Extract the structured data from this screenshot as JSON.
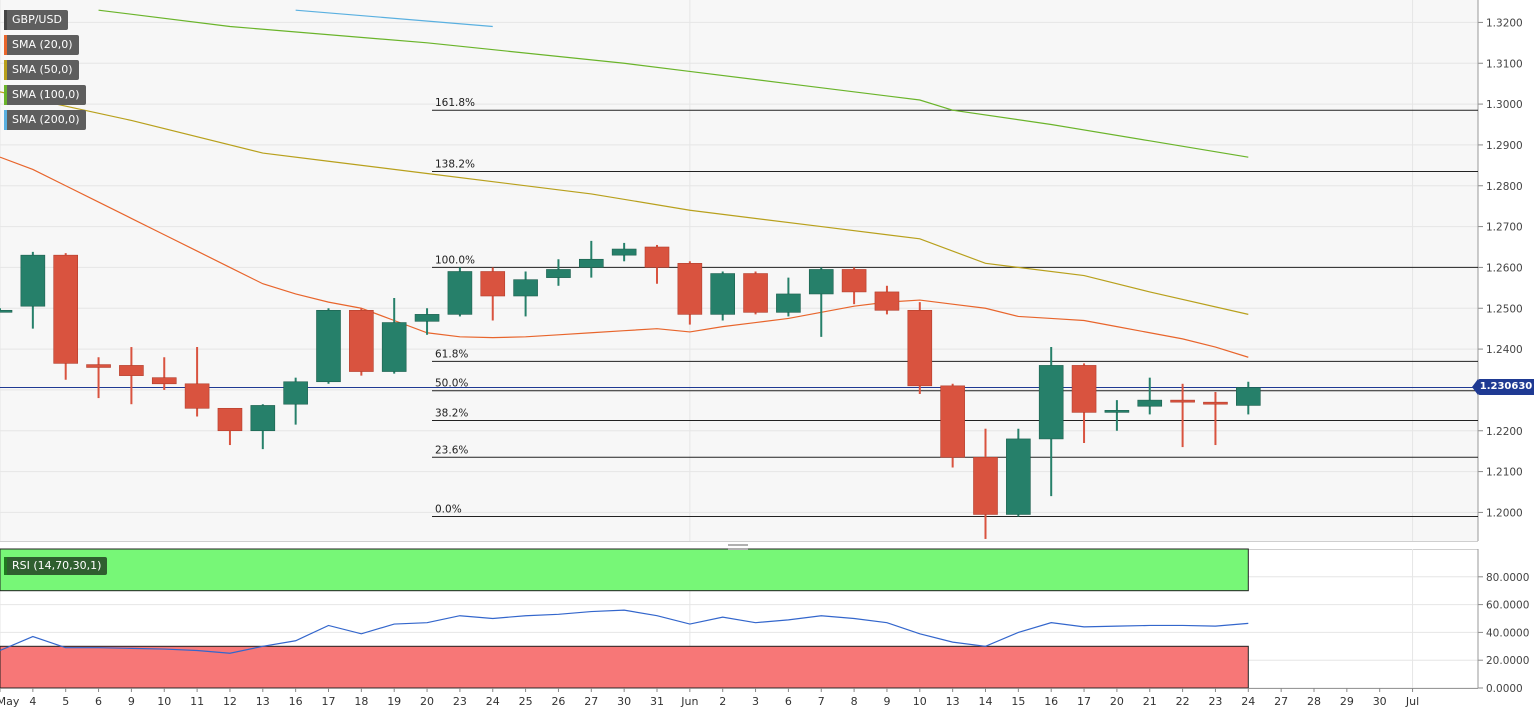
{
  "chart_data": [
    {
      "type": "candlestick",
      "symbol": "GBP/USD",
      "x_labels": [
        "May",
        "4",
        "5",
        "6",
        "9",
        "10",
        "11",
        "12",
        "13",
        "16",
        "17",
        "18",
        "19",
        "20",
        "23",
        "24",
        "25",
        "26",
        "27",
        "30",
        "31",
        "Jun",
        "2",
        "3",
        "6",
        "7",
        "8",
        "9",
        "10",
        "13",
        "14",
        "15",
        "16",
        "17",
        "20",
        "21",
        "22",
        "23",
        "24",
        "27",
        "28",
        "29",
        "30",
        "Jul"
      ],
      "ylim": [
        1.193,
        1.325
      ],
      "y_ticks": [
        "1.3200",
        "1.3100",
        "1.3000",
        "1.2900",
        "1.2800",
        "1.2700",
        "1.2600",
        "1.2500",
        "1.2400",
        "1.2300",
        "1.2200",
        "1.2100",
        "1.2000"
      ],
      "last_price": "1.230630",
      "last_price_value": 1.2306,
      "candles": [
        {
          "x": "May",
          "o": 1.2495,
          "h": 1.25,
          "l": 1.249,
          "c": 1.2495
        },
        {
          "x": "4",
          "o": 1.2505,
          "h": 1.2638,
          "l": 1.245,
          "c": 1.263
        },
        {
          "x": "5",
          "o": 1.263,
          "h": 1.2635,
          "l": 1.2325,
          "c": 1.2365
        },
        {
          "x": "6",
          "o": 1.2362,
          "h": 1.238,
          "l": 1.228,
          "c": 1.2355
        },
        {
          "x": "9",
          "o": 1.236,
          "h": 1.2405,
          "l": 1.2265,
          "c": 1.2335
        },
        {
          "x": "10",
          "o": 1.233,
          "h": 1.238,
          "l": 1.23,
          "c": 1.2315
        },
        {
          "x": "11",
          "o": 1.2315,
          "h": 1.2405,
          "l": 1.2235,
          "c": 1.2255
        },
        {
          "x": "12",
          "o": 1.2255,
          "h": 1.2255,
          "l": 1.2165,
          "c": 1.22
        },
        {
          "x": "13",
          "o": 1.22,
          "h": 1.2265,
          "l": 1.2155,
          "c": 1.2262
        },
        {
          "x": "16",
          "o": 1.2265,
          "h": 1.233,
          "l": 1.2215,
          "c": 1.232
        },
        {
          "x": "17",
          "o": 1.232,
          "h": 1.25,
          "l": 1.2315,
          "c": 1.2495
        },
        {
          "x": "18",
          "o": 1.2495,
          "h": 1.25,
          "l": 1.2335,
          "c": 1.2345
        },
        {
          "x": "19",
          "o": 1.2345,
          "h": 1.2525,
          "l": 1.234,
          "c": 1.2465
        },
        {
          "x": "20",
          "o": 1.2468,
          "h": 1.25,
          "l": 1.2435,
          "c": 1.2485
        },
        {
          "x": "23",
          "o": 1.2485,
          "h": 1.26,
          "l": 1.248,
          "c": 1.259
        },
        {
          "x": "24",
          "o": 1.259,
          "h": 1.26,
          "l": 1.247,
          "c": 1.253
        },
        {
          "x": "25",
          "o": 1.253,
          "h": 1.259,
          "l": 1.248,
          "c": 1.257
        },
        {
          "x": "26",
          "o": 1.2575,
          "h": 1.262,
          "l": 1.2555,
          "c": 1.2595
        },
        {
          "x": "27",
          "o": 1.26,
          "h": 1.2665,
          "l": 1.2575,
          "c": 1.262
        },
        {
          "x": "30",
          "o": 1.263,
          "h": 1.266,
          "l": 1.2615,
          "c": 1.2645
        },
        {
          "x": "31",
          "o": 1.265,
          "h": 1.2655,
          "l": 1.256,
          "c": 1.26
        },
        {
          "x": "Jun",
          "o": 1.261,
          "h": 1.2615,
          "l": 1.246,
          "c": 1.2485
        },
        {
          "x": "2",
          "o": 1.2485,
          "h": 1.259,
          "l": 1.247,
          "c": 1.2585
        },
        {
          "x": "3",
          "o": 1.2585,
          "h": 1.259,
          "l": 1.2485,
          "c": 1.249
        },
        {
          "x": "6",
          "o": 1.249,
          "h": 1.2575,
          "l": 1.248,
          "c": 1.2535
        },
        {
          "x": "7",
          "o": 1.2535,
          "h": 1.26,
          "l": 1.243,
          "c": 1.2595
        },
        {
          "x": "8",
          "o": 1.2595,
          "h": 1.26,
          "l": 1.251,
          "c": 1.254
        },
        {
          "x": "9",
          "o": 1.254,
          "h": 1.2555,
          "l": 1.2485,
          "c": 1.2495
        },
        {
          "x": "10",
          "o": 1.2495,
          "h": 1.2515,
          "l": 1.229,
          "c": 1.231
        },
        {
          "x": "13",
          "o": 1.231,
          "h": 1.2315,
          "l": 1.211,
          "c": 1.2135
        },
        {
          "x": "14",
          "o": 1.2135,
          "h": 1.2205,
          "l": 1.1935,
          "c": 1.1995
        },
        {
          "x": "15",
          "o": 1.1995,
          "h": 1.2205,
          "l": 1.199,
          "c": 1.218
        },
        {
          "x": "16",
          "o": 1.218,
          "h": 1.2405,
          "l": 1.204,
          "c": 1.236
        },
        {
          "x": "17",
          "o": 1.236,
          "h": 1.2365,
          "l": 1.217,
          "c": 1.2245
        },
        {
          "x": "20",
          "o": 1.2245,
          "h": 1.2275,
          "l": 1.22,
          "c": 1.225
        },
        {
          "x": "21",
          "o": 1.226,
          "h": 1.233,
          "l": 1.224,
          "c": 1.2275
        },
        {
          "x": "22",
          "o": 1.2275,
          "h": 1.2315,
          "l": 1.216,
          "c": 1.227
        },
        {
          "x": "23",
          "o": 1.227,
          "h": 1.2295,
          "l": 1.2165,
          "c": 1.2265
        },
        {
          "x": "24",
          "o": 1.2262,
          "h": 1.232,
          "l": 1.224,
          "c": 1.2306
        }
      ],
      "sma": [
        {
          "name": "SMA (20,0)",
          "color": "#e8652c",
          "points": [
            [
              "May",
              1.287
            ],
            [
              "4",
              1.284
            ],
            [
              "5",
              1.28
            ],
            [
              "6",
              1.276
            ],
            [
              "9",
              1.272
            ],
            [
              "10",
              1.268
            ],
            [
              "11",
              1.264
            ],
            [
              "12",
              1.26
            ],
            [
              "13",
              1.256
            ],
            [
              "16",
              1.2535
            ],
            [
              "17",
              1.2515
            ],
            [
              "18",
              1.25
            ],
            [
              "19",
              1.247
            ],
            [
              "20",
              1.244
            ],
            [
              "23",
              1.243
            ],
            [
              "24",
              1.2428
            ],
            [
              "25",
              1.243
            ],
            [
              "26",
              1.2435
            ],
            [
              "27",
              1.244
            ],
            [
              "30",
              1.2445
            ],
            [
              "31",
              1.245
            ],
            [
              "Jun",
              1.2442
            ],
            [
              "2",
              1.2455
            ],
            [
              "3",
              1.2465
            ],
            [
              "6",
              1.2475
            ],
            [
              "7",
              1.249
            ],
            [
              "8",
              1.2505
            ],
            [
              "9",
              1.2515
            ],
            [
              "10",
              1.252
            ],
            [
              "13",
              1.251
            ],
            [
              "14",
              1.25
            ],
            [
              "15",
              1.248
            ],
            [
              "16",
              1.2475
            ],
            [
              "17",
              1.247
            ],
            [
              "20",
              1.2455
            ],
            [
              "21",
              1.244
            ],
            [
              "22",
              1.2425
            ],
            [
              "23",
              1.2405
            ],
            [
              "24",
              1.238
            ]
          ]
        },
        {
          "name": "SMA (50,0)",
          "color": "#b8a01c",
          "points": [
            [
              "May",
              1.303
            ],
            [
              "9",
              1.296
            ],
            [
              "13",
              1.288
            ],
            [
              "17",
              1.286
            ],
            [
              "20",
              1.283
            ],
            [
              "27",
              1.278
            ],
            [
              "Jun",
              1.274
            ],
            [
              "7",
              1.27
            ],
            [
              "10",
              1.267
            ],
            [
              "14",
              1.261
            ],
            [
              "17",
              1.258
            ],
            [
              "21",
              1.254
            ],
            [
              "24",
              1.2485
            ]
          ]
        },
        {
          "name": "SMA (100,0)",
          "color": "#6ab42a",
          "points": [
            [
              "6",
              1.323
            ],
            [
              "12",
              1.319
            ],
            [
              "20",
              1.315
            ],
            [
              "30",
              1.31
            ],
            [
              "Jun",
              1.308
            ],
            [
              "6",
              1.305
            ],
            [
              "10",
              1.301
            ],
            [
              "13",
              1.2985
            ],
            [
              "16",
              1.295
            ],
            [
              "21",
              1.291
            ],
            [
              "24",
              1.287
            ]
          ]
        },
        {
          "name": "SMA (200,0)",
          "color": "#5ab0e0",
          "points": [
            [
              "16",
              1.323
            ],
            [
              "24",
              1.319
            ]
          ]
        }
      ],
      "fibonacci": [
        {
          "label": "161.8%",
          "value": 1.2985
        },
        {
          "label": "138.2%",
          "value": 1.2835
        },
        {
          "label": "100.0%",
          "value": 1.26
        },
        {
          "label": "61.8%",
          "value": 1.237
        },
        {
          "label": "50.0%",
          "value": 1.2298
        },
        {
          "label": "38.2%",
          "value": 1.2225
        },
        {
          "label": "23.6%",
          "value": 1.2135
        },
        {
          "label": "0.0%",
          "value": 1.199
        }
      ],
      "colors": {
        "up": "#26806a",
        "down": "#d9533f",
        "grid": "#e6e6e6",
        "bg": "#f7f7f7"
      }
    },
    {
      "type": "line",
      "name": "RSI (14,70,30,1)",
      "ylim": [
        0,
        100
      ],
      "y_ticks": [
        "80.0000",
        "60.0000",
        "40.0000",
        "20.0000",
        "0.0000"
      ],
      "overbought": 70,
      "oversold": 30,
      "color": "#3366cc",
      "values": [
        [
          "May",
          27
        ],
        [
          "4",
          37
        ],
        [
          "5",
          29
        ],
        [
          "6",
          29
        ],
        [
          "9",
          28.5
        ],
        [
          "10",
          28
        ],
        [
          "11",
          27
        ],
        [
          "12",
          25
        ],
        [
          "13",
          30
        ],
        [
          "16",
          34
        ],
        [
          "17",
          45
        ],
        [
          "18",
          39
        ],
        [
          "19",
          46
        ],
        [
          "20",
          47
        ],
        [
          "23",
          52
        ],
        [
          "24",
          50
        ],
        [
          "25",
          52
        ],
        [
          "26",
          53
        ],
        [
          "27",
          55
        ],
        [
          "30",
          56
        ],
        [
          "31",
          52
        ],
        [
          "Jun",
          46
        ],
        [
          "2",
          51
        ],
        [
          "3",
          47
        ],
        [
          "6",
          49
        ],
        [
          "7",
          52
        ],
        [
          "8",
          50
        ],
        [
          "9",
          47
        ],
        [
          "10",
          39
        ],
        [
          "13",
          33
        ],
        [
          "14",
          30
        ],
        [
          "15",
          40
        ],
        [
          "16",
          47
        ],
        [
          "17",
          44
        ],
        [
          "20",
          44.5
        ],
        [
          "21",
          45
        ],
        [
          "22",
          45
        ],
        [
          "23",
          44.5
        ],
        [
          "24",
          46.5
        ]
      ]
    }
  ]
}
